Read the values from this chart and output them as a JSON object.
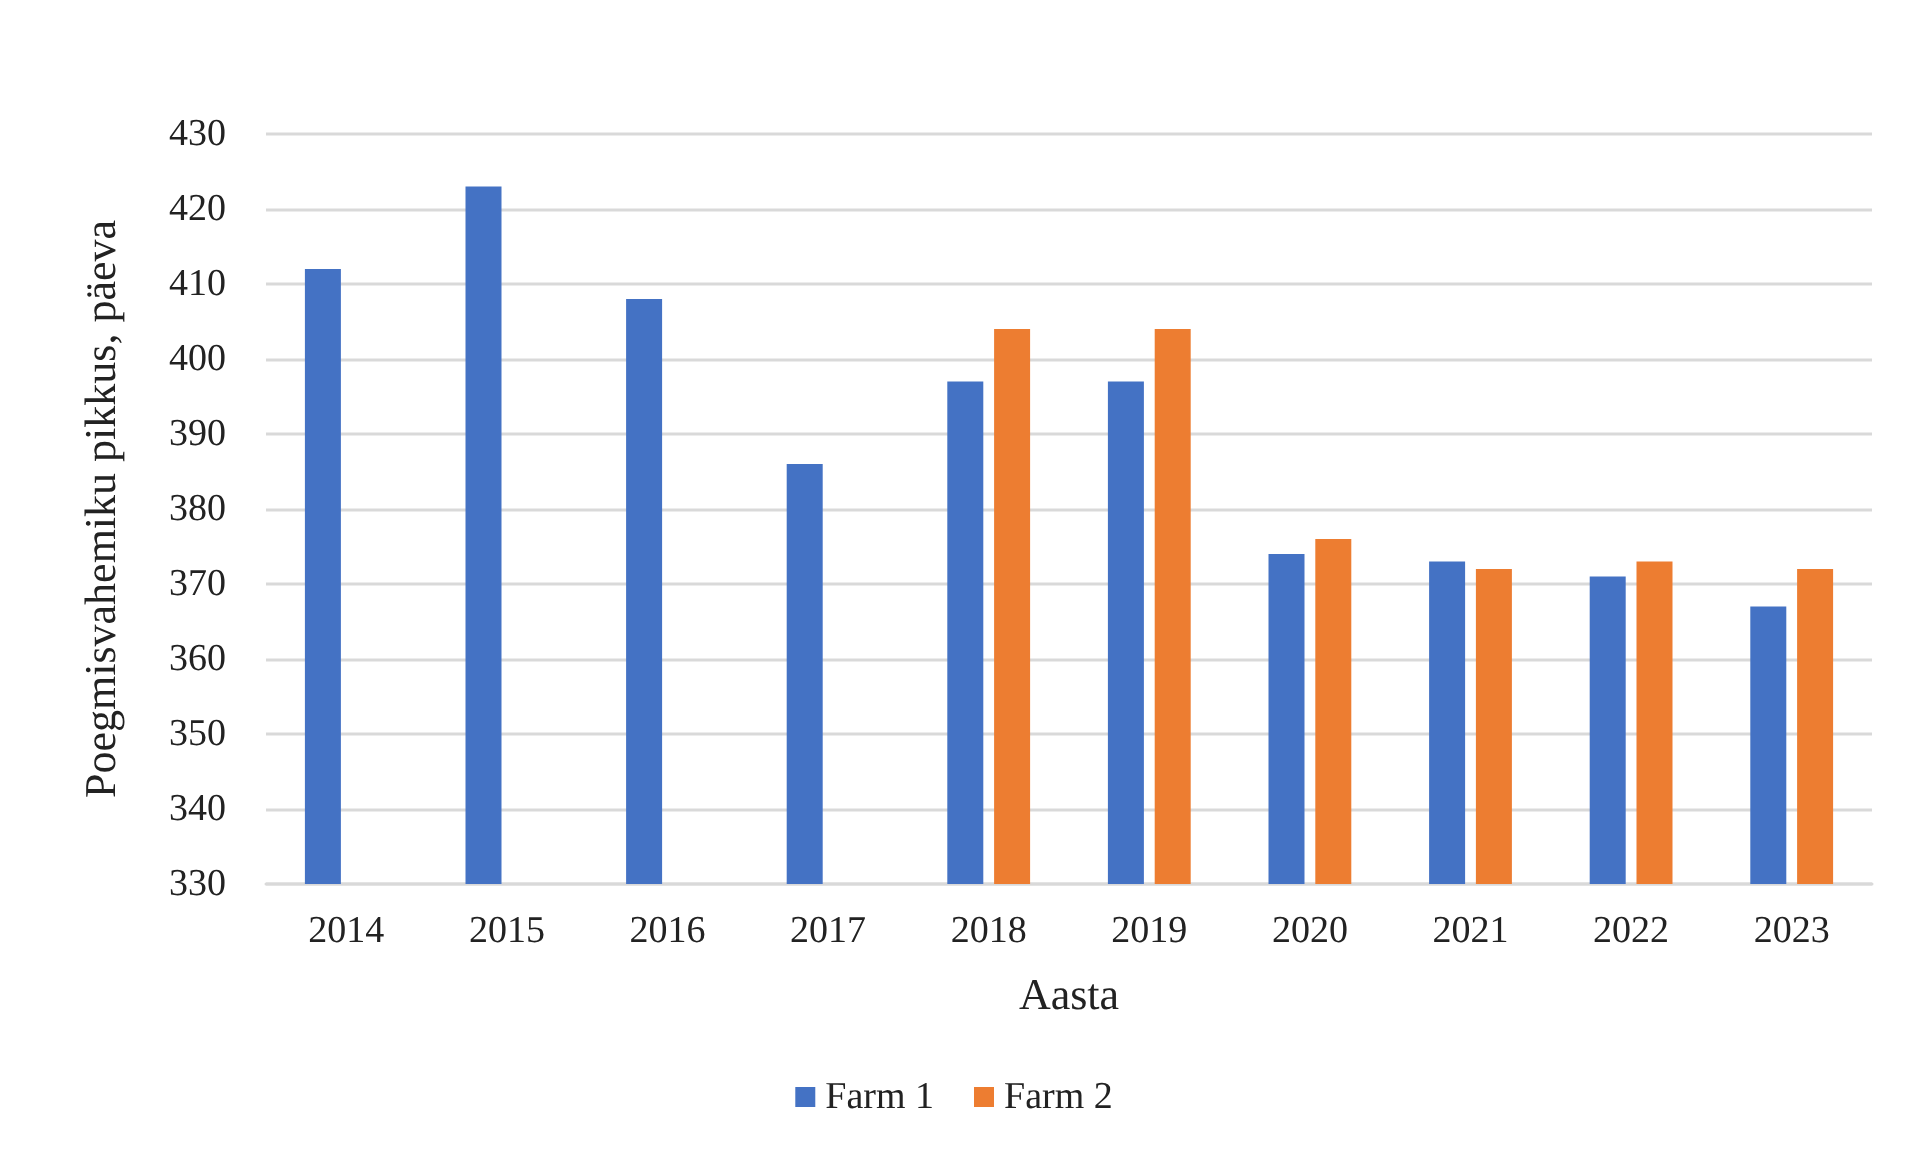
{
  "chart_data": {
    "type": "bar",
    "xlabel": "Aasta",
    "ylabel": "Poegmisvahemiku pikkus, päeva",
    "categories": [
      "2014",
      "2015",
      "2016",
      "2017",
      "2018",
      "2019",
      "2020",
      "2021",
      "2022",
      "2023"
    ],
    "series": [
      {
        "name": "Farm 1",
        "color": "#4472c4",
        "values": [
          412,
          423,
          408,
          386,
          397,
          397,
          374,
          373,
          371,
          367
        ]
      },
      {
        "name": "Farm 2",
        "color": "#ed7d31",
        "values": [
          null,
          null,
          null,
          null,
          404,
          404,
          376,
          372,
          373,
          372
        ]
      }
    ],
    "ylim": [
      330,
      430
    ],
    "yticks": [
      330,
      340,
      350,
      360,
      370,
      380,
      390,
      400,
      410,
      420,
      430
    ],
    "grid": "y",
    "legend": "bottom"
  }
}
